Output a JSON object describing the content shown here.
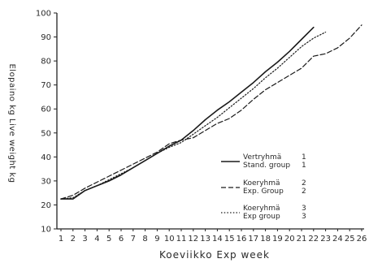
{
  "chart_data": {
    "type": "line",
    "title": "",
    "xlabel": "Koeviikko  Exp week",
    "ylabel": "Elopaino kg  Live weight kg",
    "xlim": [
      1,
      26
    ],
    "ylim": [
      10,
      100
    ],
    "xticks": [
      1,
      2,
      3,
      4,
      5,
      6,
      7,
      8,
      9,
      10,
      11,
      12,
      13,
      14,
      15,
      16,
      17,
      18,
      19,
      20,
      21,
      22,
      23,
      24,
      25,
      26
    ],
    "yticks": [
      10,
      20,
      30,
      40,
      50,
      60,
      70,
      80,
      90,
      100
    ],
    "grid": false,
    "legend_position": "right",
    "series": [
      {
        "label_fi": "Vertryhmä",
        "label_en": "Stand. group",
        "number": "1",
        "style": "solid",
        "x": [
          1,
          2,
          3,
          4,
          5,
          6,
          7,
          8,
          9,
          10,
          11,
          12,
          13,
          14,
          15,
          16,
          17,
          18,
          19,
          20,
          21,
          22
        ],
        "y": [
          22.5,
          22.5,
          26,
          28,
          30,
          32.5,
          35.5,
          38.5,
          41.5,
          44.5,
          47,
          51,
          55.5,
          59.5,
          63,
          67,
          71,
          75.5,
          79.5,
          84,
          89,
          94
        ]
      },
      {
        "label_fi": "Koeryhmä",
        "label_en": "Exp. Group",
        "number": "2",
        "style": "dashed",
        "x": [
          1,
          2,
          3,
          4,
          5,
          6,
          7,
          8,
          9,
          10,
          11,
          12,
          13,
          14,
          15,
          16,
          17,
          18,
          19,
          20,
          21,
          22,
          23,
          24,
          25,
          26
        ],
        "y": [
          22.5,
          24,
          27,
          29.5,
          32,
          34.5,
          37,
          39.5,
          42,
          45.5,
          47,
          48,
          51,
          54,
          56,
          59.5,
          64,
          68,
          71,
          74,
          77,
          82,
          83,
          85.5,
          89.5,
          95
        ]
      },
      {
        "label_fi": "Koeryhmä",
        "label_en": "Exp group",
        "number": "3",
        "style": "dotted",
        "x": [
          1,
          2,
          3,
          4,
          5,
          6,
          7,
          8,
          9,
          10,
          11,
          12,
          13,
          14,
          15,
          16,
          17,
          18,
          19,
          20,
          21,
          22,
          23
        ],
        "y": [
          22.5,
          23,
          26,
          28,
          30.5,
          33,
          35.5,
          38.5,
          41.5,
          44,
          46,
          49.5,
          53,
          56.5,
          60.5,
          64.5,
          68.5,
          73,
          77,
          81.5,
          86,
          89.5,
          92
        ]
      }
    ]
  }
}
